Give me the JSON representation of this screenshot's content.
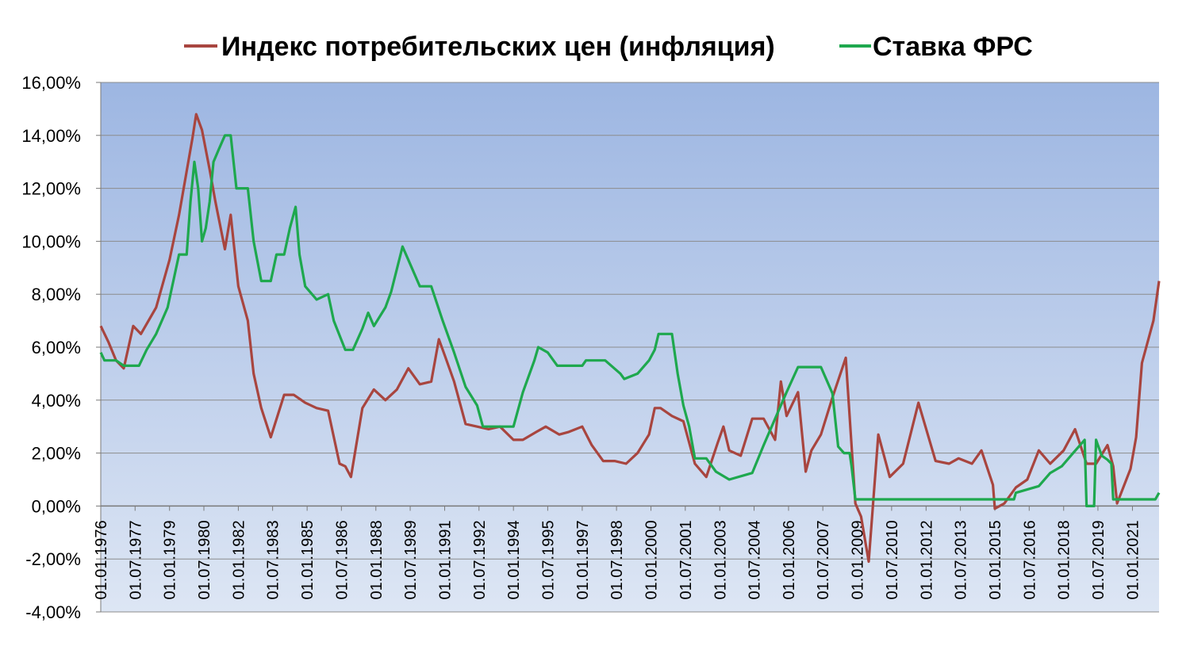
{
  "chart_data": {
    "type": "line",
    "ylim": [
      -4,
      16
    ],
    "y_tick_labels": [
      "16,00%",
      "14,00%",
      "12,00%",
      "10,00%",
      "8,00%",
      "6,00%",
      "4,00%",
      "2,00%",
      "0,00%",
      "-2,00%",
      "-4,00%"
    ],
    "y_tick_values": [
      16,
      14,
      12,
      10,
      8,
      6,
      4,
      2,
      0,
      -2,
      -4
    ],
    "x_range": [
      "1976-01-01",
      "2022-03-01"
    ],
    "x_tick_labels": [
      "01.01.1976",
      "01.07.1977",
      "01.01.1979",
      "01.07.1980",
      "01.01.1982",
      "01.07.1983",
      "01.01.1985",
      "01.07.1986",
      "01.01.1988",
      "01.07.1989",
      "01.01.1991",
      "01.07.1992",
      "01.01.1994",
      "01.07.1995",
      "01.01.1997",
      "01.07.1998",
      "01.01.2000",
      "01.07.2001",
      "01.01.2003",
      "01.07.2004",
      "01.01.2006",
      "01.07.2007",
      "01.01.2009",
      "01.07.2010",
      "01.01.2012",
      "01.07.2013",
      "01.01.2015",
      "01.07.2016",
      "01.01.2018",
      "01.07.2019",
      "01.01.2021"
    ],
    "grid": true,
    "legend_position": "top",
    "background_gradient": [
      "#9db6e2",
      "#dde6f4"
    ],
    "series": [
      {
        "name": "Индекс потребительских цен (инфляция)",
        "color": "#a8453f",
        "x": [
          "1976-01-01",
          "1976-05-01",
          "1976-09-01",
          "1977-01-01",
          "1977-06-01",
          "1977-10-01",
          "1978-06-01",
          "1979-01-01",
          "1979-06-01",
          "1980-01-01",
          "1980-03-01",
          "1980-06-01",
          "1980-10-01",
          "1981-01-01",
          "1981-06-01",
          "1981-09-01",
          "1982-01-01",
          "1982-06-01",
          "1982-09-01",
          "1983-01-01",
          "1983-06-01",
          "1984-01-01",
          "1984-06-01",
          "1984-12-01",
          "1985-06-01",
          "1985-12-01",
          "1986-06-01",
          "1986-09-01",
          "1986-12-01",
          "1987-06-01",
          "1987-12-01",
          "1988-06-01",
          "1988-12-01",
          "1989-06-01",
          "1989-12-01",
          "1990-06-01",
          "1990-10-01",
          "1991-01-01",
          "1991-06-01",
          "1991-12-01",
          "1992-06-01",
          "1992-12-01",
          "1993-06-01",
          "1994-01-01",
          "1994-06-01",
          "1995-01-01",
          "1995-06-01",
          "1996-01-01",
          "1996-06-01",
          "1997-01-01",
          "1997-06-01",
          "1997-12-01",
          "1998-06-01",
          "1998-12-01",
          "1999-06-01",
          "1999-12-01",
          "2000-03-01",
          "2000-06-01",
          "2000-12-01",
          "2001-06-01",
          "2001-12-01",
          "2002-06-01",
          "2002-12-01",
          "2003-03-01",
          "2003-06-01",
          "2003-12-01",
          "2004-06-01",
          "2004-12-01",
          "2005-06-01",
          "2005-09-01",
          "2005-12-01",
          "2006-06-01",
          "2006-10-01",
          "2007-01-01",
          "2007-06-01",
          "2007-12-01",
          "2008-07-01",
          "2008-12-01",
          "2009-03-01",
          "2009-07-01",
          "2009-12-01",
          "2010-06-01",
          "2011-01-01",
          "2011-09-01",
          "2012-06-01",
          "2013-01-01",
          "2013-06-01",
          "2014-01-01",
          "2014-06-01",
          "2014-12-01",
          "2015-01-01",
          "2015-06-01",
          "2015-12-01",
          "2016-06-01",
          "2016-12-01",
          "2017-06-01",
          "2018-01-01",
          "2018-07-01",
          "2019-01-01",
          "2019-06-01",
          "2019-12-01",
          "2020-03-01",
          "2020-05-01",
          "2020-12-01",
          "2021-03-01",
          "2021-06-01",
          "2021-12-01",
          "2022-03-01"
        ],
        "values": [
          6.8,
          6.2,
          5.5,
          5.2,
          6.8,
          6.5,
          7.5,
          9.3,
          11.0,
          13.9,
          14.8,
          14.2,
          12.7,
          11.5,
          9.7,
          11.0,
          8.3,
          7.0,
          5.0,
          3.7,
          2.6,
          4.2,
          4.2,
          3.9,
          3.7,
          3.6,
          1.6,
          1.5,
          1.1,
          3.7,
          4.4,
          4.0,
          4.4,
          5.2,
          4.6,
          4.7,
          6.3,
          5.7,
          4.7,
          3.1,
          3.0,
          2.9,
          3.0,
          2.5,
          2.5,
          2.8,
          3.0,
          2.7,
          2.8,
          3.0,
          2.3,
          1.7,
          1.7,
          1.6,
          2.0,
          2.7,
          3.7,
          3.7,
          3.4,
          3.2,
          1.6,
          1.1,
          2.4,
          3.0,
          2.1,
          1.9,
          3.3,
          3.3,
          2.5,
          4.7,
          3.4,
          4.3,
          1.3,
          2.1,
          2.7,
          4.1,
          5.6,
          0.1,
          -0.4,
          -2.1,
          2.7,
          1.1,
          1.6,
          3.9,
          1.7,
          1.6,
          1.8,
          1.6,
          2.1,
          0.8,
          -0.1,
          0.1,
          0.7,
          1.0,
          2.1,
          1.6,
          2.1,
          2.9,
          1.6,
          1.6,
          2.3,
          1.5,
          0.1,
          1.4,
          2.6,
          5.4,
          7.0,
          8.5
        ]
      },
      {
        "name": "Ставка ФРС",
        "color": "#1ea84e",
        "x": [
          "1976-01-01",
          "1976-03-01",
          "1976-06-01",
          "1976-09-01",
          "1977-01-01",
          "1977-06-01",
          "1977-09-01",
          "1978-01-01",
          "1978-06-01",
          "1978-12-01",
          "1979-06-01",
          "1979-10-01",
          "1979-12-01",
          "1980-02-01",
          "1980-04-01",
          "1980-06-01",
          "1980-08-01",
          "1980-10-01",
          "1980-12-01",
          "1981-03-01",
          "1981-06-01",
          "1981-09-01",
          "1981-12-01",
          "1982-03-01",
          "1982-06-01",
          "1982-09-01",
          "1983-01-01",
          "1983-06-01",
          "1983-09-01",
          "1984-01-01",
          "1984-04-01",
          "1984-07-01",
          "1984-09-01",
          "1984-12-01",
          "1985-06-01",
          "1985-12-01",
          "1986-03-01",
          "1986-09-01",
          "1987-01-01",
          "1987-06-01",
          "1987-09-01",
          "1987-12-01",
          "1988-06-01",
          "1988-09-01",
          "1989-03-01",
          "1989-06-01",
          "1989-12-01",
          "1990-06-01",
          "1990-12-01",
          "1991-06-01",
          "1991-12-01",
          "1992-06-01",
          "1992-09-01",
          "1993-06-01",
          "1994-01-01",
          "1994-06-01",
          "1994-12-01",
          "1995-02-01",
          "1995-07-01",
          "1995-12-01",
          "1996-03-01",
          "1996-06-01",
          "1997-01-01",
          "1997-03-01",
          "1998-01-01",
          "1998-09-01",
          "1998-11-01",
          "1999-06-01",
          "1999-12-01",
          "2000-03-01",
          "2000-05-01",
          "2000-06-01",
          "2000-12-01",
          "2001-03-01",
          "2001-06-01",
          "2001-09-01",
          "2001-12-01",
          "2002-06-01",
          "2002-11-01",
          "2003-06-01",
          "2004-06-01",
          "2004-12-01",
          "2005-06-01",
          "2005-12-01",
          "2006-06-01",
          "2007-06-01",
          "2007-09-01",
          "2007-12-01",
          "2008-03-01",
          "2008-06-01",
          "2008-09-01",
          "2008-10-01",
          "2008-12-01",
          "2010-06-01",
          "2012-06-01",
          "2014-06-01",
          "2015-11-01",
          "2015-12-01",
          "2016-12-01",
          "2017-06-01",
          "2017-12-01",
          "2018-06-01",
          "2018-12-01",
          "2019-01-01",
          "2019-05-01",
          "2019-06-01",
          "2019-07-01",
          "2019-09-01",
          "2019-12-01",
          "2020-02-01",
          "2020-03-01",
          "2021-06-01",
          "2022-01-01",
          "2022-03-01"
        ],
        "values": [
          5.8,
          5.5,
          5.5,
          5.5,
          5.3,
          5.3,
          5.3,
          5.9,
          6.5,
          7.5,
          9.5,
          9.5,
          11.5,
          13.0,
          12.0,
          10.0,
          10.5,
          11.5,
          13.0,
          13.5,
          14.0,
          14.0,
          12.0,
          12.0,
          12.0,
          10.0,
          8.5,
          8.5,
          9.5,
          9.5,
          10.5,
          11.3,
          9.5,
          8.3,
          7.8,
          8.0,
          7.0,
          5.9,
          5.9,
          6.7,
          7.3,
          6.8,
          7.5,
          8.1,
          9.8,
          9.3,
          8.3,
          8.3,
          7.0,
          5.8,
          4.5,
          3.8,
          3.0,
          3.0,
          3.0,
          4.3,
          5.5,
          6.0,
          5.8,
          5.3,
          5.3,
          5.3,
          5.3,
          5.5,
          5.5,
          5.0,
          4.8,
          5.0,
          5.5,
          5.9,
          6.5,
          6.5,
          6.5,
          5.0,
          3.8,
          3.0,
          1.8,
          1.8,
          1.3,
          1.0,
          1.25,
          2.3,
          3.3,
          4.3,
          5.25,
          5.25,
          4.75,
          4.25,
          2.25,
          2.0,
          2.0,
          1.5,
          0.25,
          0.25,
          0.25,
          0.25,
          0.25,
          0.5,
          0.75,
          1.25,
          1.5,
          2.0,
          2.5,
          0.0,
          0.0,
          2.5,
          2.3,
          1.9,
          1.75,
          1.6,
          0.25,
          0.25,
          0.25,
          0.5
        ]
      }
    ]
  }
}
